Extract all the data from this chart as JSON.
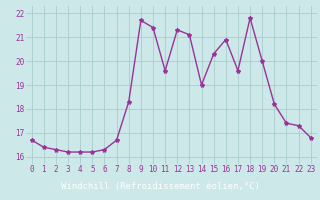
{
  "x": [
    0,
    1,
    2,
    3,
    4,
    5,
    6,
    7,
    8,
    9,
    10,
    11,
    12,
    13,
    14,
    15,
    16,
    17,
    18,
    19,
    20,
    21,
    22,
    23
  ],
  "y": [
    16.7,
    16.4,
    16.3,
    16.2,
    16.2,
    16.2,
    16.3,
    16.7,
    18.3,
    21.7,
    21.4,
    19.6,
    21.3,
    21.1,
    19.0,
    20.3,
    20.9,
    19.6,
    21.8,
    20.0,
    18.2,
    17.4,
    17.3,
    16.8
  ],
  "line_color": "#993399",
  "marker": "*",
  "markersize": 3,
  "linewidth": 1.0,
  "xlabel": "Windchill (Refroidissement éolien,°C)",
  "xlabel_fontsize": 6.5,
  "yticks": [
    16,
    17,
    18,
    19,
    20,
    21,
    22
  ],
  "xticks": [
    0,
    1,
    2,
    3,
    4,
    5,
    6,
    7,
    8,
    9,
    10,
    11,
    12,
    13,
    14,
    15,
    16,
    17,
    18,
    19,
    20,
    21,
    22,
    23
  ],
  "ylim": [
    15.7,
    22.3
  ],
  "xlim": [
    -0.5,
    23.5
  ],
  "bg_color": "#cce8e8",
  "grid_color": "#aacccc",
  "tick_label_fontsize": 5.5,
  "xlabel_bg_color": "#993399",
  "xlabel_text_color": "#ffffff"
}
